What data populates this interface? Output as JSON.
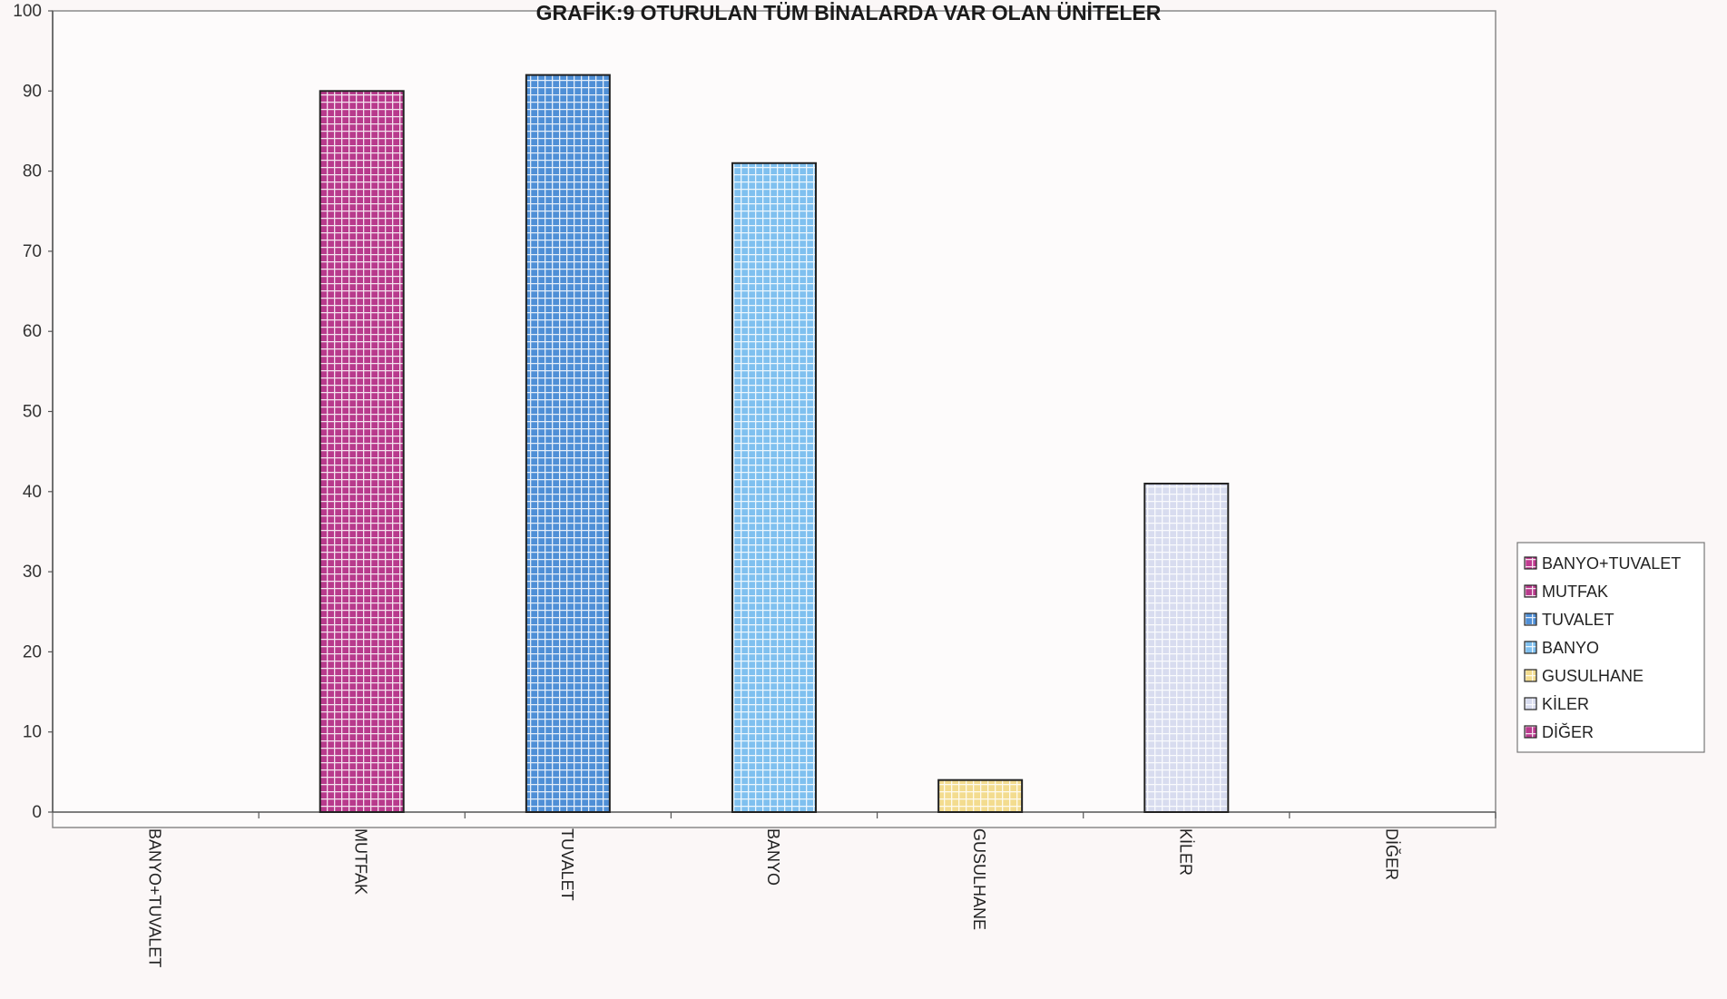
{
  "chart_data": {
    "type": "bar",
    "title": "GRAFİK:9 OTURULAN TÜM BİNALARDA VAR OLAN ÜNİTELER",
    "xlabel": "",
    "ylabel": "",
    "ylim": [
      0,
      100
    ],
    "yticks": [
      0,
      10,
      20,
      30,
      40,
      50,
      60,
      70,
      80,
      90,
      100
    ],
    "categories": [
      "BANYO+TUVALET",
      "MUTFAK",
      "TUVALET",
      "BANYO",
      "GUSULHANE",
      "KİLER",
      "DİĞER"
    ],
    "values": [
      0,
      90,
      92,
      81,
      4,
      41,
      0
    ],
    "colors": [
      "#c03a90",
      "#b83a8c",
      "#4f8fd6",
      "#7fc0ef",
      "#f3dc8f",
      "#d8dcef",
      "#b93a8e"
    ],
    "grid": false,
    "legend_position": "right",
    "legend": [
      "BANYO+TUVALET",
      "MUTFAK",
      "TUVALET",
      "BANYO",
      "GUSULHANE",
      "KİLER",
      "DİĞER"
    ]
  }
}
